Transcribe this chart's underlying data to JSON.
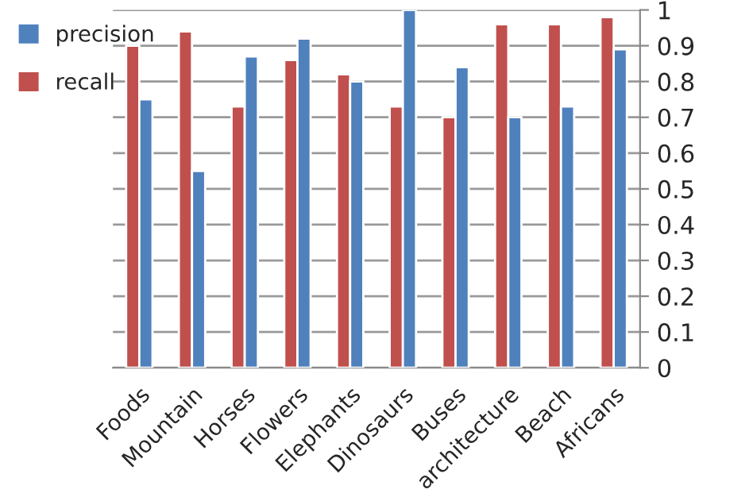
{
  "chart_data": {
    "type": "bar",
    "categories": [
      "Foods",
      "Mountain",
      "Horses",
      "Flowers",
      "Elephants",
      "Dinosaurs",
      "Buses",
      "architecture",
      "Beach",
      "Africans"
    ],
    "series": [
      {
        "name": "recall",
        "color": "#c0504d",
        "values": [
          0.9,
          0.94,
          0.73,
          0.86,
          0.82,
          0.73,
          0.7,
          0.96,
          0.96,
          0.98
        ]
      },
      {
        "name": "precision",
        "color": "#4f81bd",
        "values": [
          0.75,
          0.55,
          0.87,
          0.92,
          0.8,
          1.0,
          0.84,
          0.7,
          0.73,
          0.89
        ]
      }
    ],
    "ylim": [
      0,
      1
    ],
    "yticks": [
      0,
      0.1,
      0.2,
      0.3,
      0.4,
      0.5,
      0.6,
      0.7,
      0.8,
      0.9,
      1
    ],
    "grid": "y",
    "legend": "top left"
  }
}
